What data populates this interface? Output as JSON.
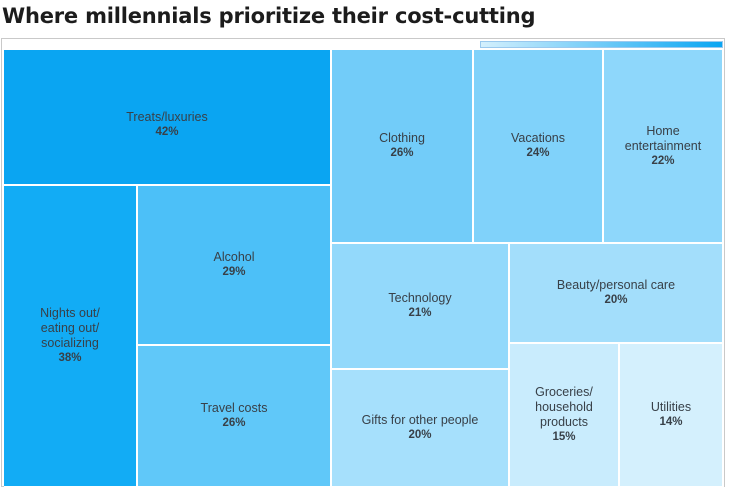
{
  "chart_data": {
    "type": "treemap",
    "title": "Where millennials prioritize their cost-cutting",
    "unit": "%",
    "items": [
      {
        "label": "Treats/luxuries",
        "value": 42,
        "display": "42%",
        "color": "#0aa5f2"
      },
      {
        "label": "Nights out/\neating out/\nsocializing",
        "value": 38,
        "display": "38%",
        "color": "#12acf5"
      },
      {
        "label": "Alcohol",
        "value": 29,
        "display": "29%",
        "color": "#4cc0f8"
      },
      {
        "label": "Travel costs",
        "value": 26,
        "display": "26%",
        "color": "#60c8f9"
      },
      {
        "label": "Clothing",
        "value": 26,
        "display": "26%",
        "color": "#72ccf9"
      },
      {
        "label": "Vacations",
        "value": 24,
        "display": "24%",
        "color": "#80d2fa"
      },
      {
        "label": "Home\nentertainment",
        "value": 22,
        "display": "22%",
        "color": "#8ed7fb"
      },
      {
        "label": "Technology",
        "value": 21,
        "display": "21%",
        "color": "#93d9fb"
      },
      {
        "label": "Beauty/personal care",
        "value": 20,
        "display": "20%",
        "color": "#a3defb"
      },
      {
        "label": "Gifts for other people",
        "value": 20,
        "display": "20%",
        "color": "#a6e0fc"
      },
      {
        "label": "Groceries/\nhousehold\nproducts",
        "value": 15,
        "display": "15%",
        "color": "#c9ecfd"
      },
      {
        "label": "Utilities",
        "value": 14,
        "display": "14%",
        "color": "#d4f0fd"
      }
    ],
    "legend": "top-right gradient bar"
  }
}
